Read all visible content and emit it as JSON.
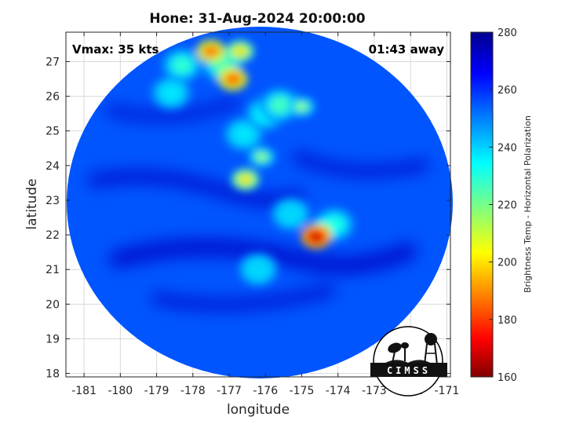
{
  "title": "Hone: 31-Aug-2024 20:00:00",
  "vmax_label": "Vmax: 35 kts",
  "time_label": "01:43 away",
  "xlabel": "longitude",
  "ylabel": "latitude",
  "colorbar_label": "Brightness Temp - Horizontal Polarization",
  "logo_text": "CIMSS",
  "x_ticks": [
    "-181",
    "-180",
    "-179",
    "-178",
    "-177",
    "-176",
    "-175",
    "-174",
    "-173",
    "-172",
    "-171"
  ],
  "y_ticks": [
    "27",
    "26",
    "25",
    "24",
    "23",
    "22",
    "21",
    "20",
    "19",
    "18"
  ],
  "colorbar_ticks": [
    "280",
    "260",
    "240",
    "220",
    "200",
    "180",
    "160"
  ],
  "chart_data": {
    "type": "heatmap",
    "title": "Hone: 31-Aug-2024 20:00:00",
    "xlabel": "longitude",
    "ylabel": "latitude",
    "xlim": [
      -181.5,
      -170.9
    ],
    "ylim": [
      17.9,
      27.85
    ],
    "clim": [
      160,
      280
    ],
    "colormap": "jet",
    "grid": true,
    "background_tb": 255,
    "features": [
      {
        "lon": -174.6,
        "lat": 21.95,
        "tb": 165
      },
      {
        "lon": -174.4,
        "lat": 22.15,
        "tb": 205
      },
      {
        "lon": -174.1,
        "lat": 22.3,
        "tb": 232
      },
      {
        "lon": -176.55,
        "lat": 23.6,
        "tb": 195
      },
      {
        "lon": -176.1,
        "lat": 24.25,
        "tb": 212
      },
      {
        "lon": -175.6,
        "lat": 25.75,
        "tb": 228
      },
      {
        "lon": -175.0,
        "lat": 25.7,
        "tb": 212
      },
      {
        "lon": -176.9,
        "lat": 26.5,
        "tb": 178
      },
      {
        "lon": -177.5,
        "lat": 27.3,
        "tb": 180
      },
      {
        "lon": -176.7,
        "lat": 27.3,
        "tb": 195
      },
      {
        "lon": -178.3,
        "lat": 26.9,
        "tb": 230
      },
      {
        "lon": -177.2,
        "lat": 26.9,
        "tb": 226
      },
      {
        "lon": -176.0,
        "lat": 25.5,
        "tb": 236
      },
      {
        "lon": -175.3,
        "lat": 22.6,
        "tb": 240
      },
      {
        "lon": -176.2,
        "lat": 21.0,
        "tb": 240
      },
      {
        "lon": -178.6,
        "lat": 26.1,
        "tb": 238
      },
      {
        "lon": -176.6,
        "lat": 24.9,
        "tb": 238
      }
    ]
  },
  "colors": {
    "background_blue": "#1a4fe8",
    "plot_white": "#ffffff",
    "grid": "#d9d9d9"
  }
}
